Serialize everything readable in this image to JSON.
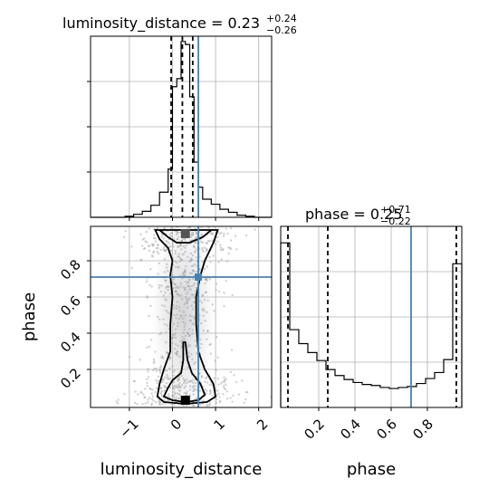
{
  "chart_data": {
    "type": "corner",
    "parameters": [
      "luminosity_distance",
      "phase"
    ],
    "truth": {
      "luminosity_distance": 0.6,
      "phase": 0.71
    },
    "colors": {
      "truth": "#4682b4",
      "hist": "#000000",
      "grid": "#b0b0b0",
      "scatter": "#9a9a9a"
    },
    "grid": true,
    "panels": {
      "luminosity_distance_hist": {
        "title": {
          "prefix": "luminosity_distance = 0.23",
          "sup": "+0.24",
          "sub": "−0.26"
        },
        "xlim": [
          -1.9,
          2.3
        ],
        "xticks": [
          -1,
          0,
          1,
          2
        ],
        "bin_edges": [
          -1.9,
          -1.7,
          -1.5,
          -1.3,
          -1.1,
          -0.9,
          -0.7,
          -0.5,
          -0.3,
          -0.1,
          0.0,
          0.1,
          0.2,
          0.3,
          0.4,
          0.5,
          0.6,
          0.7,
          0.9,
          1.1,
          1.3,
          1.5,
          1.7,
          1.9,
          2.1,
          2.3
        ],
        "counts": [
          0,
          0,
          0,
          0,
          1,
          3,
          6,
          12,
          25,
          48,
          130,
          138,
          175,
          172,
          120,
          55,
          30,
          18,
          13,
          8,
          5,
          2,
          1,
          0,
          0
        ],
        "quantiles": [
          -0.03,
          0.23,
          0.47
        ]
      },
      "phase_hist": {
        "title": {
          "prefix": "phase = 0.25",
          "sup": "+0.71",
          "sub": "−0.22"
        },
        "xlim": [
          -0.01,
          0.99
        ],
        "xticks": [
          0.2,
          0.4,
          0.6,
          0.8
        ],
        "bin_edges": [
          -0.01,
          0.04,
          0.09,
          0.14,
          0.19,
          0.24,
          0.29,
          0.34,
          0.39,
          0.44,
          0.49,
          0.54,
          0.59,
          0.64,
          0.69,
          0.74,
          0.79,
          0.84,
          0.89,
          0.94,
          0.99
        ],
        "counts": [
          165,
          78,
          64,
          55,
          47,
          38,
          32,
          28,
          25,
          23,
          22,
          20,
          19,
          20,
          21,
          24,
          29,
          35,
          48,
          144
        ],
        "quantiles": [
          0.03,
          0.25,
          0.96
        ]
      },
      "scatter": {
        "xlabel": "luminosity_distance",
        "ylabel": "phase",
        "xlim": [
          -1.9,
          2.3
        ],
        "ylim": [
          -0.01,
          0.99
        ],
        "xticks": [
          -1,
          0,
          1,
          2
        ],
        "yticks": [
          0.2,
          0.4,
          0.6,
          0.8
        ],
        "contours": [
          {
            "level": "outer",
            "points": [
              [
                -0.4,
                0.97
              ],
              [
                -0.3,
                0.92
              ],
              [
                -0.1,
                0.87
              ],
              [
                0.0,
                0.8
              ],
              [
                -0.05,
                0.72
              ],
              [
                0.0,
                0.6
              ],
              [
                -0.05,
                0.45
              ],
              [
                -0.05,
                0.3
              ],
              [
                -0.2,
                0.2
              ],
              [
                -0.3,
                0.12
              ],
              [
                -0.35,
                0.05
              ],
              [
                -0.2,
                0.02
              ],
              [
                0.3,
                0.01
              ],
              [
                0.8,
                0.02
              ],
              [
                1.0,
                0.05
              ],
              [
                0.95,
                0.12
              ],
              [
                0.75,
                0.2
              ],
              [
                0.6,
                0.3
              ],
              [
                0.55,
                0.45
              ],
              [
                0.55,
                0.6
              ],
              [
                0.65,
                0.72
              ],
              [
                0.75,
                0.8
              ],
              [
                0.95,
                0.9
              ],
              [
                1.05,
                0.97
              ]
            ]
          },
          {
            "level": "inner",
            "points": [
              [
                -0.1,
                0.1
              ],
              [
                -0.2,
                0.05
              ],
              [
                0.0,
                0.03
              ],
              [
                0.3,
                0.02
              ],
              [
                0.6,
                0.03
              ],
              [
                0.75,
                0.06
              ],
              [
                0.65,
                0.12
              ],
              [
                0.45,
                0.18
              ],
              [
                0.35,
                0.25
              ],
              [
                0.3,
                0.35
              ],
              [
                0.25,
                0.35
              ],
              [
                0.25,
                0.25
              ],
              [
                0.2,
                0.18
              ],
              [
                0.0,
                0.14
              ]
            ]
          },
          {
            "level": "top-inner",
            "points": [
              [
                -0.3,
                0.97
              ],
              [
                -0.1,
                0.93
              ],
              [
                0.1,
                0.9
              ],
              [
                0.4,
                0.9
              ],
              [
                0.7,
                0.93
              ],
              [
                0.9,
                0.97
              ]
            ]
          }
        ],
        "dense_peaks": [
          [
            0.3,
            0.03
          ],
          [
            0.3,
            0.95
          ]
        ]
      }
    }
  }
}
